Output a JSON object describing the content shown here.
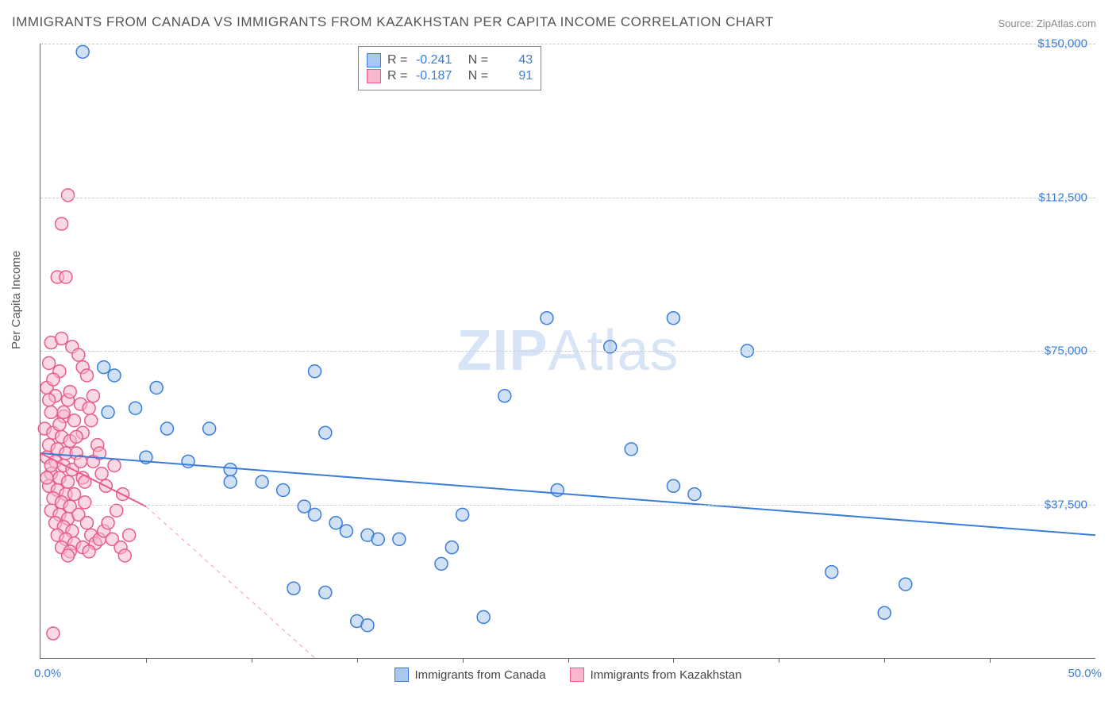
{
  "title": "IMMIGRANTS FROM CANADA VS IMMIGRANTS FROM KAZAKHSTAN PER CAPITA INCOME CORRELATION CHART",
  "source": "Source: ZipAtlas.com",
  "watermark_bold": "ZIP",
  "watermark_light": "Atlas",
  "y_axis_title": "Per Capita Income",
  "chart": {
    "type": "scatter",
    "xlim": [
      0,
      50
    ],
    "ylim": [
      0,
      150000
    ],
    "x_tick_label_left": "0.0%",
    "x_tick_label_right": "50.0%",
    "x_minor_ticks": [
      5,
      10,
      15,
      20,
      25,
      30,
      35,
      40,
      45
    ],
    "y_gridlines": [
      37500,
      75000,
      112500,
      150000
    ],
    "y_tick_labels": [
      "$37,500",
      "$75,000",
      "$112,500",
      "$150,000"
    ],
    "background_color": "#ffffff",
    "grid_color": "#cccccc",
    "axis_color": "#666666",
    "tick_label_color": "#3b7dd8",
    "marker_radius": 8,
    "marker_stroke_width": 1.5,
    "trend_line_width": 2,
    "series": [
      {
        "name": "Immigrants from Canada",
        "fill_color": "#a9c8ef",
        "stroke_color": "#3b7dd8",
        "fill_opacity": 0.55,
        "R": "-0.241",
        "N": "43",
        "trend": {
          "x1": 0,
          "y1": 50000,
          "x2": 50,
          "y2": 30000,
          "dash": "none"
        },
        "points": [
          [
            2.0,
            148000
          ],
          [
            3.0,
            71000
          ],
          [
            3.5,
            69000
          ],
          [
            5.5,
            66000
          ],
          [
            3.2,
            60000
          ],
          [
            4.5,
            61000
          ],
          [
            6.0,
            56000
          ],
          [
            8.0,
            56000
          ],
          [
            5.0,
            49000
          ],
          [
            7.0,
            48000
          ],
          [
            9.0,
            46000
          ],
          [
            9.0,
            43000
          ],
          [
            10.5,
            43000
          ],
          [
            13.0,
            70000
          ],
          [
            13.5,
            55000
          ],
          [
            11.5,
            41000
          ],
          [
            13.0,
            35000
          ],
          [
            12.5,
            37000
          ],
          [
            12.0,
            17000
          ],
          [
            14.0,
            33000
          ],
          [
            14.5,
            31000
          ],
          [
            15.5,
            30000
          ],
          [
            15.0,
            9000
          ],
          [
            16.0,
            29000
          ],
          [
            17.0,
            29000
          ],
          [
            19.0,
            23000
          ],
          [
            19.5,
            27000
          ],
          [
            20.0,
            35000
          ],
          [
            22.0,
            64000
          ],
          [
            21.0,
            10000
          ],
          [
            24.0,
            83000
          ],
          [
            24.5,
            41000
          ],
          [
            27.0,
            76000
          ],
          [
            28.0,
            51000
          ],
          [
            30.0,
            42000
          ],
          [
            31.0,
            40000
          ],
          [
            33.5,
            75000
          ],
          [
            30.0,
            83000
          ],
          [
            37.5,
            21000
          ],
          [
            40.0,
            11000
          ],
          [
            41.0,
            18000
          ],
          [
            15.5,
            8000
          ],
          [
            13.5,
            16000
          ]
        ]
      },
      {
        "name": "Immigrants from Kazakhstan",
        "fill_color": "#f7b8cf",
        "stroke_color": "#e85b8b",
        "fill_opacity": 0.55,
        "R": "-0.187",
        "N": "91",
        "trend": {
          "x1": 0,
          "y1": 50000,
          "x2": 5,
          "y2": 37000,
          "dash": "none"
        },
        "trend_ext": {
          "x1": 5,
          "y1": 37000,
          "x2": 13,
          "y2": 0,
          "dash": "5,5"
        },
        "points": [
          [
            1.3,
            113000
          ],
          [
            1.0,
            106000
          ],
          [
            0.8,
            93000
          ],
          [
            1.2,
            93000
          ],
          [
            0.5,
            77000
          ],
          [
            1.0,
            78000
          ],
          [
            1.5,
            76000
          ],
          [
            1.8,
            74000
          ],
          [
            0.4,
            72000
          ],
          [
            0.9,
            70000
          ],
          [
            2.0,
            71000
          ],
          [
            2.2,
            69000
          ],
          [
            0.3,
            66000
          ],
          [
            0.7,
            64000
          ],
          [
            1.3,
            63000
          ],
          [
            1.9,
            62000
          ],
          [
            0.5,
            60000
          ],
          [
            1.1,
            59000
          ],
          [
            1.6,
            58000
          ],
          [
            2.3,
            61000
          ],
          [
            0.2,
            56000
          ],
          [
            0.6,
            55000
          ],
          [
            1.0,
            54000
          ],
          [
            1.4,
            53000
          ],
          [
            0.4,
            52000
          ],
          [
            0.8,
            51000
          ],
          [
            1.2,
            50000
          ],
          [
            1.7,
            50000
          ],
          [
            0.3,
            49000
          ],
          [
            0.7,
            48000
          ],
          [
            1.1,
            47000
          ],
          [
            1.5,
            46000
          ],
          [
            0.5,
            45000
          ],
          [
            0.9,
            44000
          ],
          [
            1.3,
            43000
          ],
          [
            2.0,
            44000
          ],
          [
            0.4,
            42000
          ],
          [
            0.8,
            41000
          ],
          [
            1.2,
            40000
          ],
          [
            1.6,
            40000
          ],
          [
            0.6,
            39000
          ],
          [
            1.0,
            38000
          ],
          [
            1.4,
            37000
          ],
          [
            2.1,
            38000
          ],
          [
            0.5,
            36000
          ],
          [
            0.9,
            35000
          ],
          [
            1.3,
            34000
          ],
          [
            1.8,
            35000
          ],
          [
            0.7,
            33000
          ],
          [
            1.1,
            32000
          ],
          [
            1.5,
            31000
          ],
          [
            2.2,
            33000
          ],
          [
            0.8,
            30000
          ],
          [
            1.2,
            29000
          ],
          [
            1.6,
            28000
          ],
          [
            2.4,
            30000
          ],
          [
            1.0,
            27000
          ],
          [
            1.4,
            26000
          ],
          [
            2.0,
            27000
          ],
          [
            2.6,
            28000
          ],
          [
            1.3,
            25000
          ],
          [
            2.3,
            26000
          ],
          [
            2.8,
            29000
          ],
          [
            3.0,
            31000
          ],
          [
            3.2,
            33000
          ],
          [
            3.4,
            29000
          ],
          [
            3.6,
            36000
          ],
          [
            3.8,
            27000
          ],
          [
            4.0,
            25000
          ],
          [
            4.2,
            30000
          ],
          [
            2.5,
            48000
          ],
          [
            2.7,
            52000
          ],
          [
            2.9,
            45000
          ],
          [
            3.1,
            42000
          ],
          [
            3.5,
            47000
          ],
          [
            3.9,
            40000
          ],
          [
            0.6,
            6000
          ],
          [
            2.0,
            55000
          ],
          [
            2.4,
            58000
          ],
          [
            2.8,
            50000
          ],
          [
            1.9,
            48000
          ],
          [
            2.1,
            43000
          ],
          [
            0.3,
            44000
          ],
          [
            0.5,
            47000
          ],
          [
            1.7,
            54000
          ],
          [
            0.9,
            57000
          ],
          [
            1.1,
            60000
          ],
          [
            0.4,
            63000
          ],
          [
            0.6,
            68000
          ],
          [
            1.4,
            65000
          ],
          [
            2.5,
            64000
          ]
        ]
      }
    ]
  },
  "stats_box": {
    "rows": [
      {
        "swatch_fill": "#a9c8ef",
        "swatch_stroke": "#3b7dd8",
        "R_label": "R =",
        "R_val": "-0.241",
        "N_label": "N =",
        "N_val": "43"
      },
      {
        "swatch_fill": "#f7b8cf",
        "swatch_stroke": "#e85b8b",
        "R_label": "R =",
        "R_val": "-0.187",
        "N_label": "N =",
        "N_val": "91"
      }
    ]
  },
  "legend": {
    "items": [
      {
        "swatch_fill": "#a9c8ef",
        "swatch_stroke": "#3b7dd8",
        "label": "Immigrants from Canada"
      },
      {
        "swatch_fill": "#f7b8cf",
        "swatch_stroke": "#e85b8b",
        "label": "Immigrants from Kazakhstan"
      }
    ]
  }
}
